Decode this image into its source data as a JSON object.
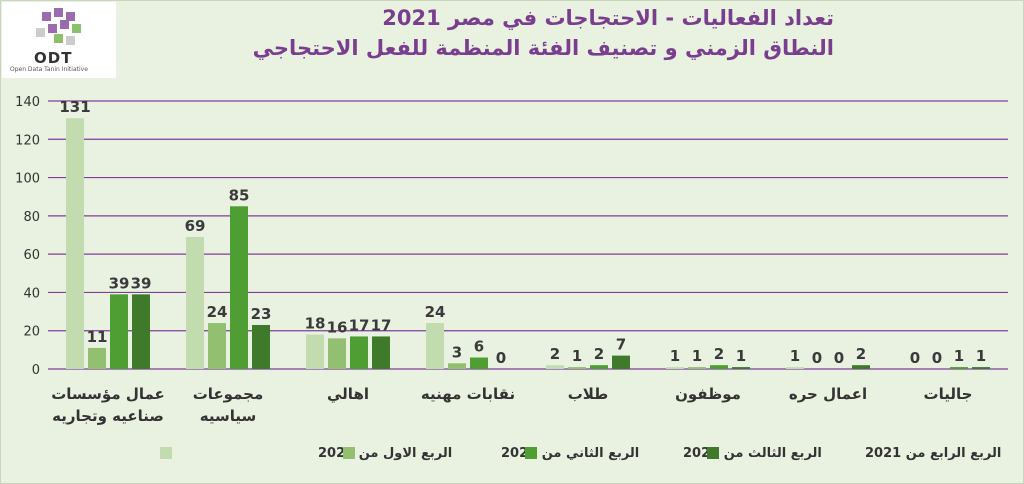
{
  "logo": {
    "text": "ODT",
    "subtitle": "Open Data Tanin Initiative"
  },
  "chart_data": {
    "type": "bar",
    "title": "تعداد الفعاليات - الاحتجاجات في مصر 2021",
    "subtitle": "النطاق الزمني و تصنيف الفئة المنظمة للفعل الاحتجاجي",
    "xlabel": "",
    "ylabel": "",
    "ylim": [
      0,
      140
    ],
    "yticks": [
      0,
      20,
      40,
      60,
      80,
      100,
      120,
      140
    ],
    "grid": true,
    "legend_position": "bottom",
    "categories": [
      [
        "عمال مؤسسات",
        "صناعيه وتجاريه"
      ],
      [
        "مجموعات",
        "سياسيه"
      ],
      [
        "اهالي"
      ],
      [
        "نقابات مهنيه"
      ],
      [
        "طلاب"
      ],
      [
        "موظفون"
      ],
      [
        "اعمال حره"
      ],
      [
        "جاليات"
      ]
    ],
    "series": [
      {
        "name": "الربع الاول من 2021",
        "color": "#c2dcb0",
        "values": [
          131,
          69,
          18,
          24,
          2,
          1,
          1,
          0
        ]
      },
      {
        "name": "الربع الثاني من 2021",
        "color": "#92c070",
        "values": [
          11,
          24,
          16,
          3,
          1,
          1,
          0,
          0
        ]
      },
      {
        "name": "الربع الثالث من 2021",
        "color": "#4f9e34",
        "values": [
          39,
          85,
          17,
          6,
          2,
          2,
          0,
          1
        ]
      },
      {
        "name": "الربع الرابع من 2021",
        "color": "#3f7a2a",
        "values": [
          39,
          23,
          17,
          0,
          7,
          1,
          2,
          1
        ]
      }
    ],
    "gridline_color": "#7d3f98"
  }
}
